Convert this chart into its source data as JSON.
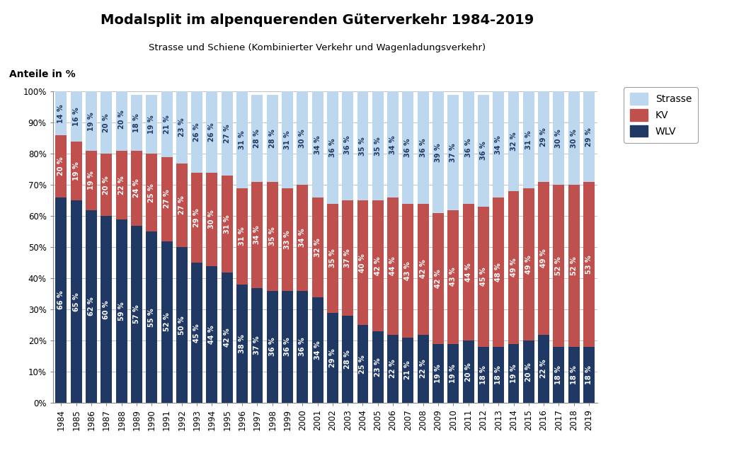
{
  "title": "Modalsplit im alpenquerenden Güterverkehr 1984-2019",
  "subtitle": "Strasse und Schiene (Kombinierter Verkehr und Wagenladungsverkehr)",
  "ylabel": "Anteile in %",
  "years": [
    1984,
    1985,
    1986,
    1987,
    1988,
    1989,
    1990,
    1991,
    1992,
    1993,
    1994,
    1995,
    1996,
    1997,
    1998,
    1999,
    2000,
    2001,
    2002,
    2003,
    2004,
    2005,
    2006,
    2007,
    2008,
    2009,
    2010,
    2011,
    2012,
    2013,
    2014,
    2015,
    2016,
    2017,
    2018,
    2019
  ],
  "WLV": [
    66,
    65,
    62,
    60,
    59,
    57,
    55,
    52,
    50,
    45,
    44,
    42,
    38,
    37,
    36,
    36,
    36,
    34,
    29,
    28,
    25,
    23,
    22,
    21,
    22,
    19,
    19,
    20,
    18,
    18,
    19,
    20,
    22,
    18,
    18,
    18
  ],
  "KV": [
    20,
    19,
    19,
    20,
    22,
    24,
    25,
    27,
    27,
    29,
    30,
    31,
    31,
    34,
    35,
    33,
    34,
    32,
    35,
    37,
    40,
    42,
    44,
    43,
    42,
    42,
    43,
    44,
    45,
    48,
    49,
    49,
    49,
    52,
    52,
    53
  ],
  "Strasse": [
    14,
    16,
    19,
    20,
    20,
    18,
    19,
    21,
    23,
    26,
    26,
    27,
    31,
    28,
    28,
    31,
    30,
    34,
    36,
    36,
    35,
    35,
    34,
    36,
    36,
    39,
    37,
    36,
    36,
    34,
    32,
    31,
    29,
    30,
    30,
    29
  ],
  "color_strasse": "#BDD7EE",
  "color_kv": "#C0504D",
  "color_wlv": "#1F3864",
  "legend_labels": [
    "Strasse",
    "KV",
    "WLV"
  ],
  "background_color": "#FFFFFF",
  "grid_color": "#AAAAAA",
  "text_color_wlv": "#FFFFFF",
  "text_color_kv": "#FFFFFF",
  "text_color_strasse": "#1F3864",
  "bar_width": 0.75,
  "title_fontsize": 14,
  "subtitle_fontsize": 9.5,
  "tick_fontsize": 8.5,
  "label_fontsize": 7.0
}
